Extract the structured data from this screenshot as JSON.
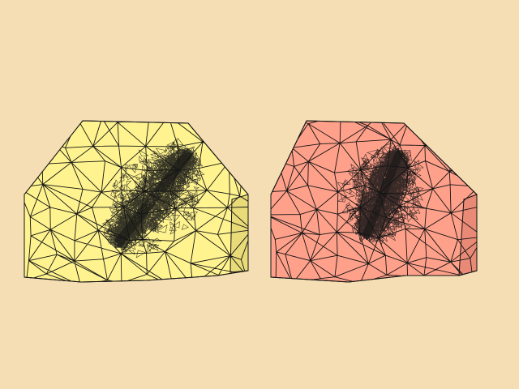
{
  "scene": {
    "background": "#F5DEB3",
    "edge_color": "#141414",
    "meshes": [
      {
        "id": "mesh-left",
        "face_color": "#FFF38F",
        "shade_color": "#E8DB78"
      },
      {
        "id": "mesh-right",
        "face_color": "#FFA08A",
        "shade_color": "#E88A76"
      }
    ]
  }
}
